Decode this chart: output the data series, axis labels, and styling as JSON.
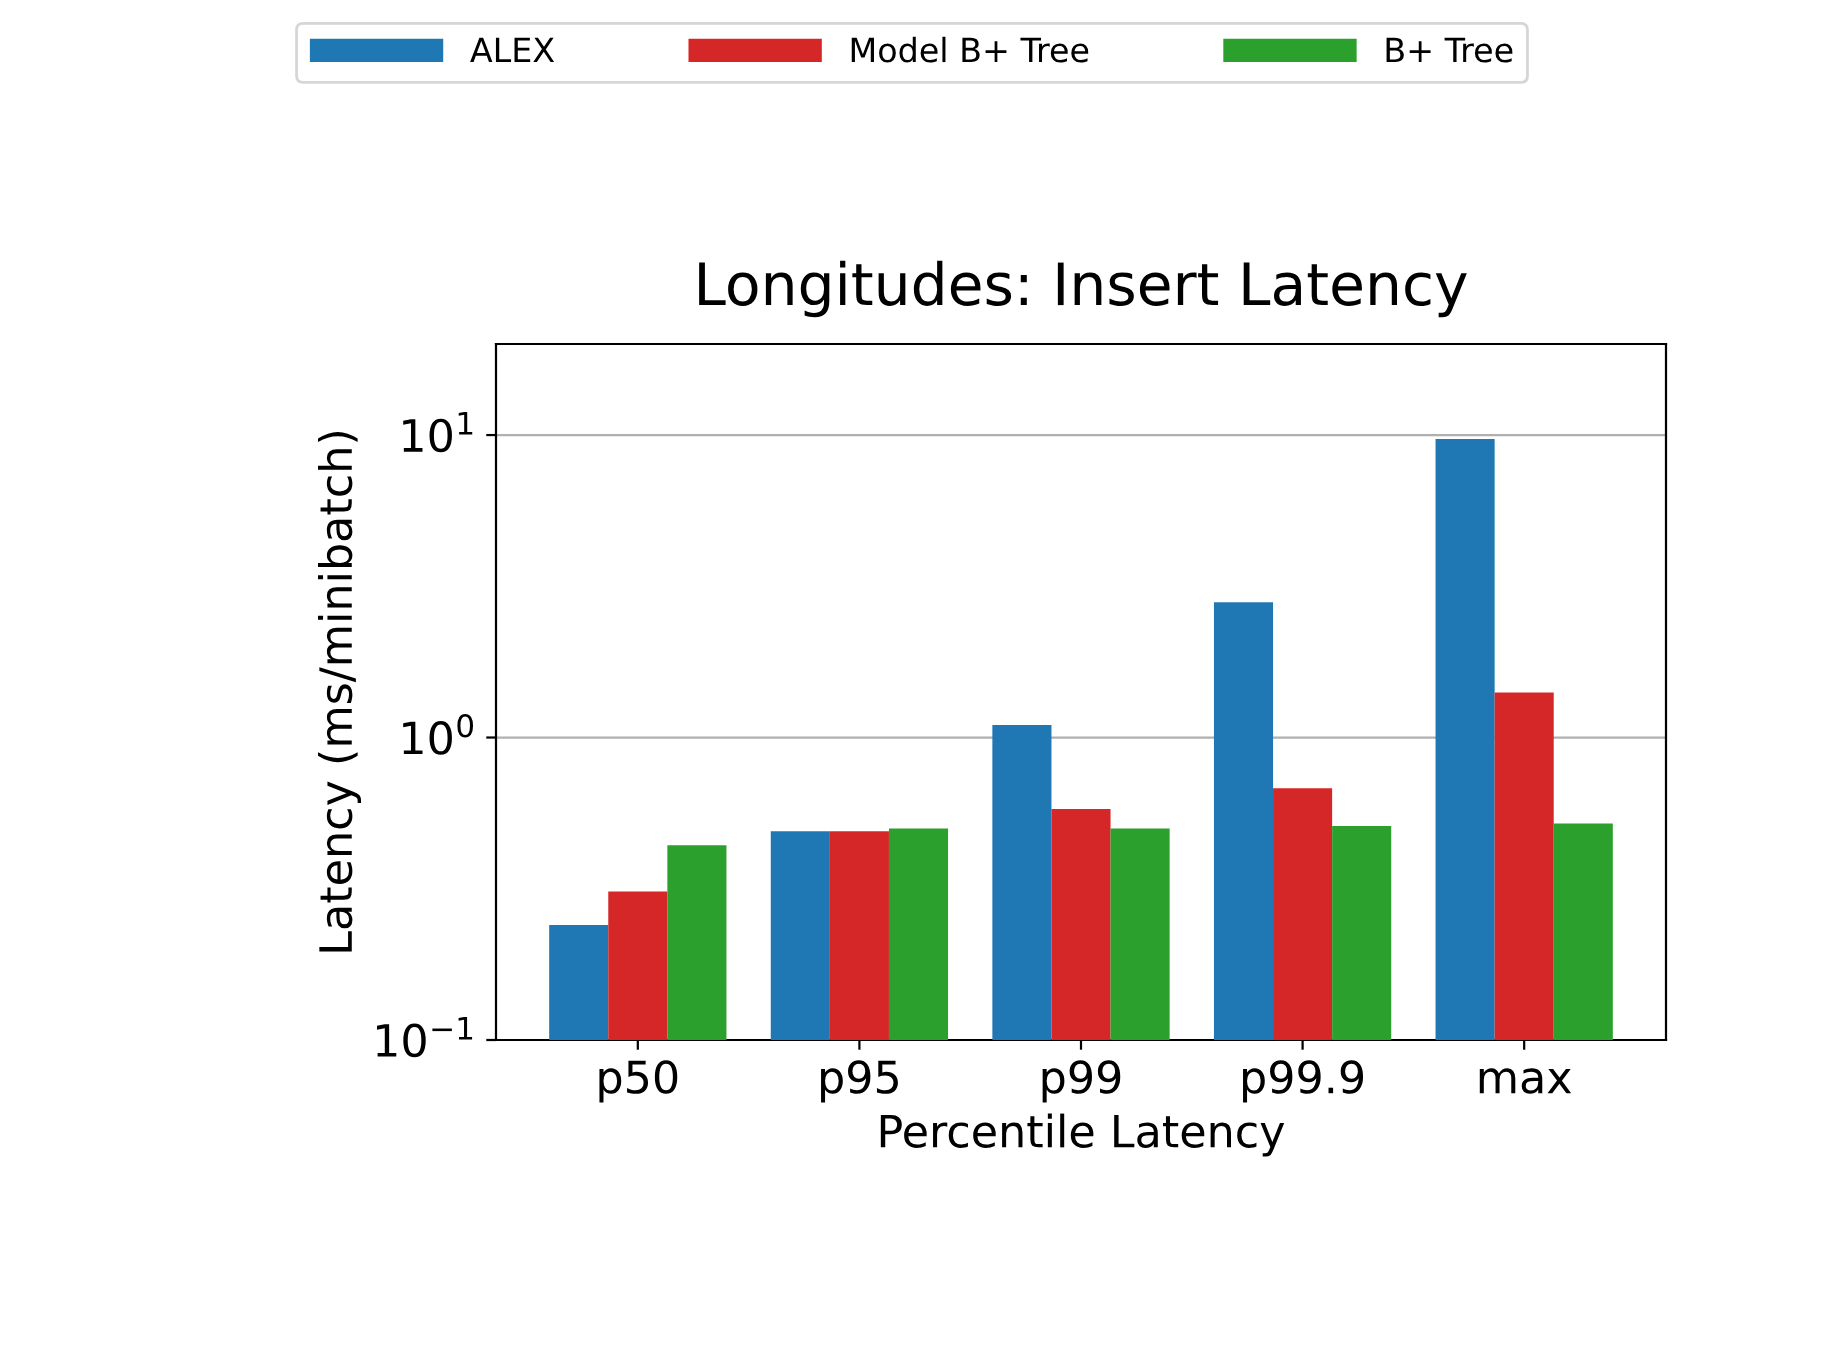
{
  "chart_data": {
    "type": "bar",
    "title": "Longitudes: Insert Latency",
    "xlabel": "Percentile Latency",
    "ylabel": "Latency (ms/minibatch)",
    "categories": [
      "p50",
      "p95",
      "p99",
      "p99.9",
      "max"
    ],
    "series": [
      {
        "name": "ALEX",
        "color": "#1f77b4",
        "values": [
          0.24,
          0.49,
          1.1,
          2.8,
          9.7
        ]
      },
      {
        "name": "Model B+ Tree",
        "color": "#d62728",
        "values": [
          0.31,
          0.49,
          0.58,
          0.68,
          1.41
        ]
      },
      {
        "name": "B+ Tree",
        "color": "#2ca02c",
        "values": [
          0.44,
          0.5,
          0.5,
          0.51,
          0.52
        ]
      }
    ],
    "log": "y",
    "ylim": [
      0.1,
      20
    ],
    "yticks": [
      {
        "value": 0.1,
        "label": "10$^{−1}$"
      },
      {
        "value": 1,
        "label": "10$^{0}$"
      },
      {
        "value": 10,
        "label": "10$^{1}$"
      }
    ],
    "grid": "y",
    "legend": "top"
  }
}
